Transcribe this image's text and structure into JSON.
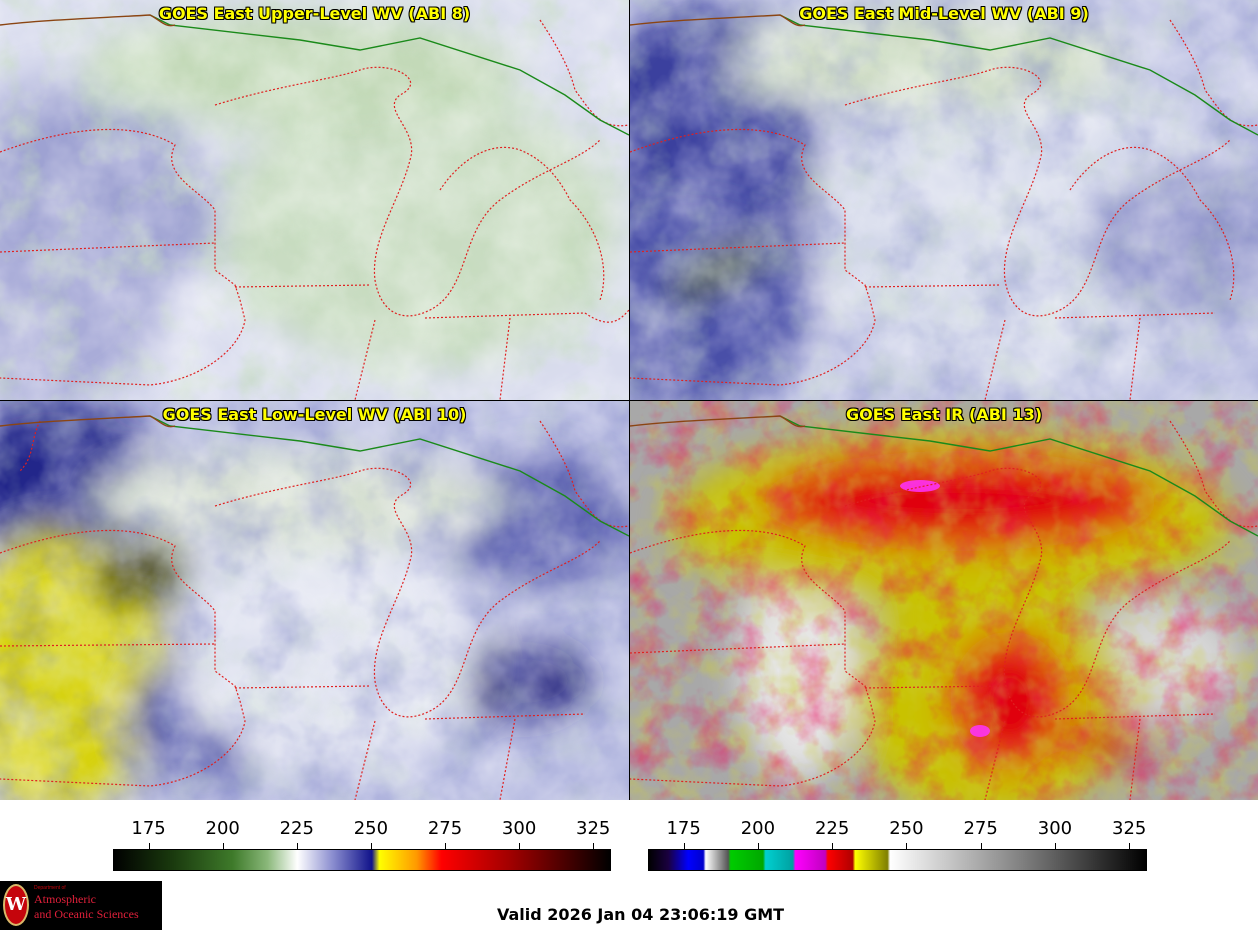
{
  "panels": [
    {
      "title": "GOES East Upper-Level WV (ABI 8)"
    },
    {
      "title": "GOES East Mid-Level WV (ABI 9)"
    },
    {
      "title": "GOES East Low-Level WV (ABI 10)"
    },
    {
      "title": "GOES East IR (ABI 13)"
    }
  ],
  "colorbars": [
    {
      "name": "water-vapor",
      "ticks": [
        "175",
        "200",
        "225",
        "250",
        "275",
        "300",
        "325"
      ],
      "range": [
        163,
        331
      ]
    },
    {
      "name": "infrared",
      "ticks": [
        "175",
        "200",
        "225",
        "250",
        "275",
        "300",
        "325"
      ],
      "range": [
        163,
        331
      ]
    }
  ],
  "colors": {
    "border_state": "#e02020",
    "border_country": "#1a8a1a",
    "coast": "#8b4513",
    "title": "#ffff00"
  },
  "logo": {
    "dept": "Department of",
    "line1": "Atmospheric",
    "line2": "and Oceanic Sciences",
    "seal_letter": "W"
  },
  "valid_time": "Valid 2026 Jan 04 23:06:19 GMT"
}
